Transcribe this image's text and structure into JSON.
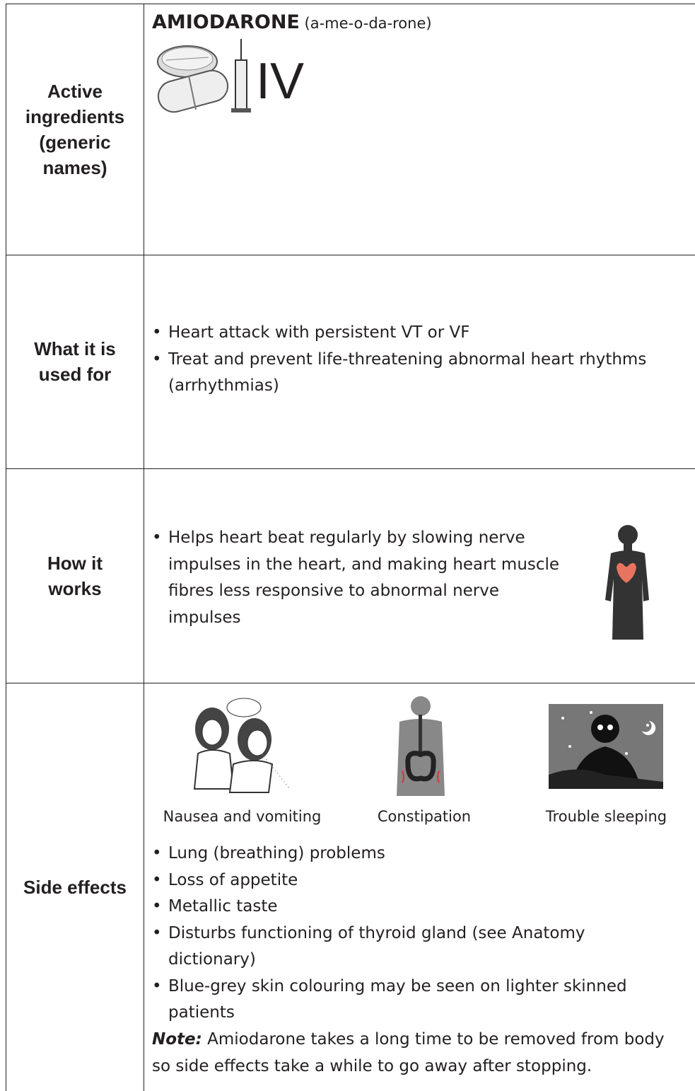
{
  "rows": [
    {
      "label": "Active ingredients (generic names)",
      "drug_name": "AMIODARONE",
      "pronunciation": "(a-me-o-da-rone)",
      "route": "IV"
    },
    {
      "label": "What it is used for",
      "bullets": [
        "Heart attack with persistent VT or VF",
        "Treat and prevent life-threatening abnormal heart rhythms (arrhythmias)"
      ]
    },
    {
      "label": "How it works",
      "bullets": [
        "Helps heart beat regularly by slowing nerve impulses in the heart, and making heart muscle fibres less responsive to abnormal nerve impulses"
      ]
    },
    {
      "label": "Side effects",
      "images": [
        {
          "caption": "Nausea and vomiting"
        },
        {
          "caption": "Constipation"
        },
        {
          "caption": "Trouble sleeping"
        }
      ],
      "bullets": [
        "Lung (breathing) problems",
        "Loss of appetite",
        "Metallic taste",
        "Disturbs functioning of thyroid gland (see Anatomy dictionary)",
        "Blue-grey skin colouring may be seen on lighter skinned patients"
      ],
      "note": {
        "label": "Note:",
        "text": "Amiodarone takes a long time to be removed from body so side effects take a while to go away after stopping."
      }
    }
  ]
}
